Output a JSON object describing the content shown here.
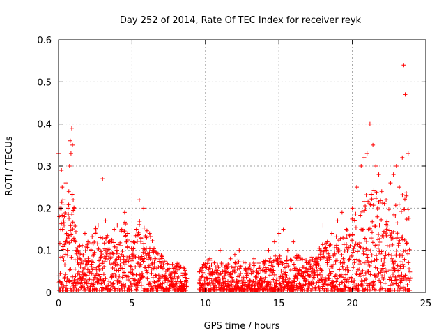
{
  "chart_data": {
    "type": "scatter",
    "title": "Day 252 of 2014, Rate Of TEC Index for receiver reyk",
    "xlabel": "GPS time / hours",
    "ylabel": "ROTI / TECUs",
    "xlim": [
      0,
      25
    ],
    "ylim": [
      0,
      0.6
    ],
    "xticks": [
      "0",
      "5",
      "10",
      "15",
      "20",
      "25"
    ],
    "yticks": [
      "0",
      "0.1",
      "0.2",
      "0.3",
      "0.4",
      "0.5",
      "0.6"
    ],
    "grid": true,
    "marker": "+",
    "color": "#ff0000",
    "series": [
      {
        "x": [
          0.0,
          0.1,
          0.15,
          0.2,
          0.25,
          0.3,
          0.35,
          0.4,
          0.45,
          0.5,
          0.55,
          0.6,
          0.65,
          0.7,
          0.75,
          0.8,
          0.85,
          0.9,
          0.95,
          1.0,
          1.05,
          1.1,
          1.15,
          1.2,
          1.3,
          1.4,
          1.5,
          1.8,
          2.0,
          2.2,
          2.5,
          2.7,
          3.0,
          3.2,
          3.5,
          3.8,
          4.0,
          4.3,
          4.5,
          4.7,
          5.0,
          5.3,
          5.5,
          5.8,
          6.0,
          6.2,
          6.4,
          6.6,
          6.8,
          7.0,
          7.3,
          7.6,
          8.0,
          8.3,
          8.6,
          9.6,
          9.8,
          10.0,
          10.3,
          10.6,
          11.0,
          11.3,
          11.7,
          12.0,
          12.3,
          12.7,
          13.0,
          13.3,
          13.7,
          14.0,
          14.3,
          14.7,
          15.0,
          15.3,
          15.6,
          15.8,
          16.0,
          16.5,
          17.0,
          17.5,
          17.8,
          18.0,
          18.3,
          18.6,
          19.0,
          19.3,
          19.6,
          20.0,
          20.3,
          20.6,
          20.8,
          21.0,
          21.2,
          21.4,
          21.6,
          21.8,
          22.0,
          22.3,
          22.6,
          22.8,
          23.0,
          23.2,
          23.4,
          23.5,
          23.6,
          23.8
        ],
        "y": [
          0.33,
          0.2,
          0.15,
          0.29,
          0.25,
          0.22,
          0.17,
          0.18,
          0.12,
          0.26,
          0.14,
          0.1,
          0.2,
          0.24,
          0.3,
          0.36,
          0.33,
          0.39,
          0.35,
          0.22,
          0.2,
          0.16,
          0.12,
          0.1,
          0.1,
          0.07,
          0.06,
          0.14,
          0.12,
          0.1,
          0.14,
          0.16,
          0.27,
          0.17,
          0.12,
          0.15,
          0.16,
          0.15,
          0.19,
          0.14,
          0.12,
          0.15,
          0.22,
          0.2,
          0.13,
          0.14,
          0.1,
          0.08,
          0.06,
          0.06,
          0.05,
          0.04,
          0.05,
          0.06,
          0.04,
          0.05,
          0.06,
          0.06,
          0.08,
          0.07,
          0.1,
          0.06,
          0.08,
          0.09,
          0.1,
          0.07,
          0.06,
          0.08,
          0.06,
          0.07,
          0.1,
          0.12,
          0.14,
          0.15,
          0.1,
          0.2,
          0.12,
          0.08,
          0.07,
          0.08,
          0.1,
          0.16,
          0.12,
          0.14,
          0.17,
          0.19,
          0.15,
          0.2,
          0.25,
          0.3,
          0.32,
          0.33,
          0.4,
          0.35,
          0.3,
          0.28,
          0.24,
          0.22,
          0.26,
          0.28,
          0.3,
          0.25,
          0.32,
          0.54,
          0.47,
          0.33
        ]
      }
    ],
    "envelope": [
      [
        0.0,
        0.2
      ],
      [
        0.3,
        0.22
      ],
      [
        0.7,
        0.22
      ],
      [
        1.0,
        0.3
      ],
      [
        1.3,
        0.12
      ],
      [
        1.6,
        0.12
      ],
      [
        2.0,
        0.12
      ],
      [
        2.6,
        0.16
      ],
      [
        3.2,
        0.14
      ],
      [
        3.8,
        0.13
      ],
      [
        4.4,
        0.18
      ],
      [
        5.0,
        0.12
      ],
      [
        5.6,
        0.18
      ],
      [
        6.2,
        0.14
      ],
      [
        6.8,
        0.1
      ],
      [
        7.4,
        0.07
      ],
      [
        8.0,
        0.07
      ],
      [
        8.7,
        0.06
      ],
      [
        9.6,
        0.06
      ],
      [
        10.2,
        0.08
      ],
      [
        10.8,
        0.07
      ],
      [
        11.5,
        0.07
      ],
      [
        12.2,
        0.08
      ],
      [
        12.9,
        0.07
      ],
      [
        13.6,
        0.07
      ],
      [
        14.3,
        0.08
      ],
      [
        15.0,
        0.09
      ],
      [
        15.7,
        0.08
      ],
      [
        16.4,
        0.09
      ],
      [
        17.1,
        0.08
      ],
      [
        17.8,
        0.11
      ],
      [
        18.5,
        0.13
      ],
      [
        19.2,
        0.14
      ],
      [
        19.9,
        0.17
      ],
      [
        20.5,
        0.2
      ],
      [
        21.0,
        0.24
      ],
      [
        21.5,
        0.25
      ],
      [
        22.0,
        0.22
      ],
      [
        22.5,
        0.2
      ],
      [
        23.0,
        0.22
      ],
      [
        23.5,
        0.24
      ],
      [
        23.9,
        0.24
      ]
    ]
  }
}
